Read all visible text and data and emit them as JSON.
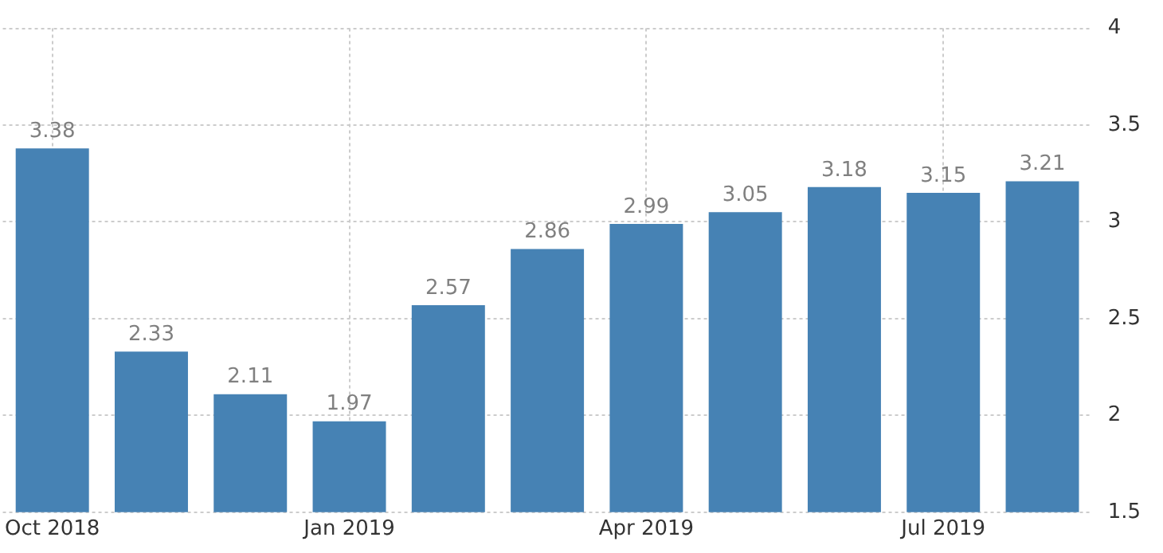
{
  "chart_data": {
    "type": "bar",
    "categories": [
      "Oct 2018",
      null,
      null,
      "Jan 2019",
      null,
      null,
      "Apr 2019",
      null,
      null,
      "Jul 2019",
      null
    ],
    "values": [
      3.38,
      2.33,
      2.11,
      1.97,
      2.57,
      2.86,
      2.99,
      3.05,
      3.18,
      3.15,
      3.21
    ],
    "color": "#4682b4",
    "ylim": [
      1.5,
      4
    ],
    "yticks": [
      1.5,
      2,
      2.5,
      3,
      3.5,
      4
    ],
    "grid": true,
    "data_labels": true
  }
}
